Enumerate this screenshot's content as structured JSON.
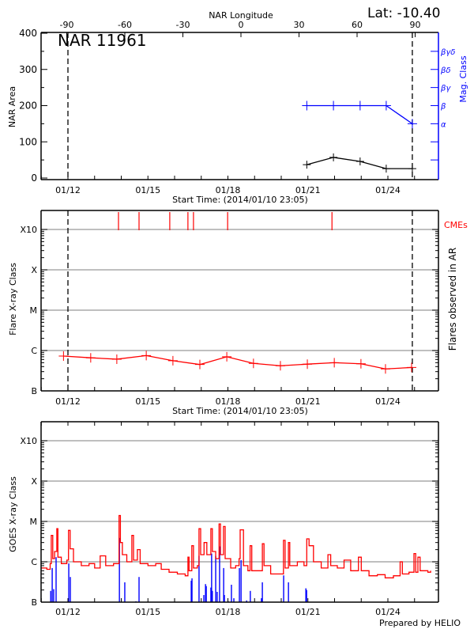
{
  "header": {
    "lat_label": "Lat: -10.40"
  },
  "footer": {
    "credit": "Prepared by HELIO"
  },
  "colors": {
    "area": "#000000",
    "mag_class": "#0000ff",
    "flare": "#ff0000",
    "cme": "#ff0000",
    "goes_flux": "#ff0000",
    "goes_events": "#0000ff",
    "grid": "#999999"
  },
  "chart_data": [
    {
      "type": "line",
      "title": "NAR 11961",
      "top_axis_label": "NAR Longitude",
      "top_ticks": [
        -90,
        -60,
        -30,
        0,
        30,
        60,
        90
      ],
      "xlabel": "Start Time: (2014/01/10 23:05)",
      "x_tick_labels": [
        "01/12",
        "01/15",
        "01/18",
        "01/21",
        "01/24"
      ],
      "ylabel": "NAR Area",
      "ylim": [
        0,
        400
      ],
      "y_ticks": [
        0,
        100,
        200,
        300,
        400
      ],
      "y2label": "Mag. Class",
      "y2_ticks": [
        "α",
        "β",
        "βγ",
        "βδ",
        "βγδ"
      ],
      "dashed_lines": [
        "01/12 00:00",
        "01/24 22:00"
      ],
      "area_points": [
        [
          "01/20 23:00",
          37
        ],
        [
          "01/21 23:00",
          57
        ],
        [
          "01/22 23:00",
          46
        ],
        [
          "01/23 22:30",
          26
        ],
        [
          "01/24 22:00",
          26
        ]
      ],
      "mag_class_points": [
        [
          "01/20 23:00",
          "β"
        ],
        [
          "01/21 23:00",
          "β"
        ],
        [
          "01/22 23:00",
          "β"
        ],
        [
          "01/23 22:30",
          "β"
        ],
        [
          "01/24 22:00",
          "α"
        ]
      ],
      "grid": false
    },
    {
      "type": "line",
      "xlabel": "Start Time: (2014/01/10 23:05)",
      "x_tick_labels": [
        "01/12",
        "01/15",
        "01/18",
        "01/21",
        "01/24"
      ],
      "ylabel": "Flare X-ray Class",
      "y2label": "Flares observed in AR",
      "class_ticks": [
        "B",
        "C",
        "M",
        "X",
        "X10"
      ],
      "yscale": "log",
      "ylim_flux": [
        1e-07,
        0.0029
      ],
      "grid": true,
      "cme_label": "CMEs",
      "cme_times": [
        "01/13 21:30",
        "01/14 16:00",
        "01/15 19:40",
        "01/16 12:00",
        "01/16 17:00",
        "01/17 23:45",
        "01/21 21:40"
      ],
      "dashed_lines": [
        "01/12 00:00",
        "01/24 22:00"
      ],
      "flare_points": [
        [
          "01/11 20:00",
          7.3e-07
        ],
        [
          "01/12 20:30",
          6.6e-07
        ],
        [
          "01/13 20:00",
          6.1e-07
        ],
        [
          "01/14 22:30",
          7.5e-07
        ],
        [
          "01/15 22:30",
          5.6e-07
        ],
        [
          "01/16 22:45",
          4.5e-07
        ],
        [
          "01/17 23:00",
          7e-07
        ],
        [
          "01/18 23:00",
          4.8e-07
        ],
        [
          "01/19 23:15",
          4.2e-07
        ],
        [
          "01/20 23:30",
          4.6e-07
        ],
        [
          "01/21 23:45",
          5e-07
        ],
        [
          "01/22 23:45",
          4.7e-07
        ],
        [
          "01/23 21:50",
          3.5e-07
        ],
        [
          "01/24 21:20",
          3.8e-07
        ]
      ]
    },
    {
      "type": "line",
      "x_tick_labels": [
        "01/12",
        "01/15",
        "01/18",
        "01/21",
        "01/24"
      ],
      "ylabel": "GOES X-ray Class",
      "class_ticks": [
        "B",
        "C",
        "M",
        "X",
        "X10"
      ],
      "yscale": "log",
      "ylim_flux": [
        1e-07,
        0.0029
      ],
      "grid": true,
      "flux_series": [
        [
          "01/11 00:00",
          7e-07
        ],
        [
          "01/11 05:00",
          6.5e-07
        ],
        [
          "01/11 08:00",
          9e-07
        ],
        [
          "01/11 09:00",
          4.5e-06
        ],
        [
          "01/11 10:20",
          1.2e-06
        ],
        [
          "01/11 12:00",
          1.8e-06
        ],
        [
          "01/11 14:00",
          6.6e-06
        ],
        [
          "01/11 15:00",
          1.3e-06
        ],
        [
          "01/11 18:00",
          9e-07
        ],
        [
          "01/11 23:00",
          1.1e-06
        ],
        [
          "01/12 00:30",
          6e-06
        ],
        [
          "01/12 02:00",
          2.1e-06
        ],
        [
          "01/12 05:00",
          1e-06
        ],
        [
          "01/12 12:00",
          8e-07
        ],
        [
          "01/12 19:00",
          9e-07
        ],
        [
          "01/13 00:00",
          7e-07
        ],
        [
          "01/13 05:00",
          1.4e-06
        ],
        [
          "01/13 10:00",
          8e-07
        ],
        [
          "01/13 17:00",
          9e-07
        ],
        [
          "01/13 21:00",
          9e-07
        ],
        [
          "01/13 22:00",
          1.4e-05
        ],
        [
          "01/13 23:15",
          3e-06
        ],
        [
          "01/14 01:00",
          1.5e-06
        ],
        [
          "01/14 05:00",
          1e-06
        ],
        [
          "01/14 09:30",
          4.5e-06
        ],
        [
          "01/14 11:00",
          1.1e-06
        ],
        [
          "01/14 14:30",
          2e-06
        ],
        [
          "01/14 17:00",
          9e-07
        ],
        [
          "01/15 00:00",
          8e-07
        ],
        [
          "01/15 07:00",
          9e-07
        ],
        [
          "01/15 12:00",
          6.5e-07
        ],
        [
          "01/15 19:00",
          5.5e-07
        ],
        [
          "01/16 02:30",
          5e-07
        ],
        [
          "01/16 09:30",
          4.5e-07
        ],
        [
          "01/16 12:00",
          1.3e-06
        ],
        [
          "01/16 13:00",
          6e-07
        ],
        [
          "01/16 15:30",
          2.5e-06
        ],
        [
          "01/16 17:00",
          7e-07
        ],
        [
          "01/16 20:30",
          8e-07
        ],
        [
          "01/16 22:00",
          6.6e-06
        ],
        [
          "01/16 23:30",
          1.5e-06
        ],
        [
          "01/17 02:30",
          3e-06
        ],
        [
          "01/17 05:00",
          1.5e-06
        ],
        [
          "01/17 08:40",
          6.6e-06
        ],
        [
          "01/17 10:00",
          1.8e-06
        ],
        [
          "01/17 13:00",
          1.2e-06
        ],
        [
          "01/17 16:00",
          8.7e-06
        ],
        [
          "01/17 17:20",
          1.5e-06
        ],
        [
          "01/17 20:00",
          7.5e-06
        ],
        [
          "01/17 21:30",
          1.2e-06
        ],
        [
          "01/18 02:30",
          7e-07
        ],
        [
          "01/18 07:00",
          8e-07
        ],
        [
          "01/18 10:00",
          1.2e-06
        ],
        [
          "01/18 11:00",
          6.2e-06
        ],
        [
          "01/18 12:30",
          6.2e-06
        ],
        [
          "01/18 14:00",
          8e-07
        ],
        [
          "01/18 18:00",
          6e-07
        ],
        [
          "01/18 20:00",
          2.5e-06
        ],
        [
          "01/18 21:30",
          6e-07
        ],
        [
          "01/19 05:00",
          6e-07
        ],
        [
          "01/19 07:00",
          2.8e-06
        ],
        [
          "01/19 08:30",
          8e-07
        ],
        [
          "01/19 14:30",
          5e-07
        ],
        [
          "01/19 21:30",
          5e-07
        ],
        [
          "01/20 02:00",
          3.4e-06
        ],
        [
          "01/20 03:30",
          7e-07
        ],
        [
          "01/20 06:30",
          3e-06
        ],
        [
          "01/20 07:40",
          8e-07
        ],
        [
          "01/20 14:30",
          1e-06
        ],
        [
          "01/20 20:30",
          8e-07
        ],
        [
          "01/20 23:00",
          3.7e-06
        ],
        [
          "01/21 01:00",
          2.5e-06
        ],
        [
          "01/21 05:00",
          1e-06
        ],
        [
          "01/21 12:00",
          7e-07
        ],
        [
          "01/21 18:00",
          1.5e-06
        ],
        [
          "01/21 20:30",
          8e-07
        ],
        [
          "01/22 02:30",
          7e-07
        ],
        [
          "01/22 08:30",
          1.1e-06
        ],
        [
          "01/22 14:30",
          6e-07
        ],
        [
          "01/22 21:30",
          1.3e-06
        ],
        [
          "01/23 00:00",
          6e-07
        ],
        [
          "01/23 07:00",
          4.5e-07
        ],
        [
          "01/23 14:30",
          4.8e-07
        ],
        [
          "01/23 21:30",
          4e-07
        ],
        [
          "01/24 05:00",
          4.5e-07
        ],
        [
          "01/24 11:00",
          1e-06
        ],
        [
          "01/24 13:00",
          5e-07
        ],
        [
          "01/24 19:00",
          5.5e-07
        ],
        [
          "01/24 23:30",
          1.6e-06
        ],
        [
          "01/25 01:00",
          5.5e-07
        ],
        [
          "01/25 03:00",
          1.3e-06
        ],
        [
          "01/25 05:00",
          6e-07
        ],
        [
          "01/25 12:00",
          5.5e-07
        ],
        [
          "01/25 14:30",
          6e-07
        ]
      ],
      "flare_events": [
        [
          "01/11 08:30",
          1.9e-07
        ],
        [
          "01/11 09:50",
          7e-07
        ],
        [
          "01/11 11:10",
          2.1e-07
        ],
        [
          "01/11 13:20",
          1.3e-06
        ],
        [
          "01/12 00:45",
          9.1e-07
        ],
        [
          "01/12 02:10",
          4.2e-07
        ],
        [
          "01/13 22:20",
          3.9e-06
        ],
        [
          "01/14 03:10",
          3.1e-07
        ],
        [
          "01/14 13:10",
          1.05e-07
        ],
        [
          "01/14 16:00",
          4.2e-07
        ],
        [
          "01/16 15:00",
          3.4e-07
        ],
        [
          "01/16 15:40",
          3.9e-07
        ],
        [
          "01/16 22:00",
          1.4e-06
        ],
        [
          "01/17 02:20",
          1.5e-07
        ],
        [
          "01/17 03:50",
          2.8e-07
        ],
        [
          "01/17 04:30",
          2.5e-07
        ],
        [
          "01/17 08:40",
          2.3e-07
        ],
        [
          "01/17 09:20",
          1.6e-06
        ],
        [
          "01/17 10:00",
          1.9e-07
        ],
        [
          "01/17 13:00",
          1.4e-06
        ],
        [
          "01/17 14:20",
          1.8e-07
        ],
        [
          "01/17 16:30",
          2.4e-06
        ],
        [
          "01/17 20:10",
          7e-07
        ],
        [
          "01/17 20:50",
          1.5e-07
        ],
        [
          "01/18 00:20",
          1.05e-07
        ],
        [
          "01/18 03:10",
          2.7e-07
        ],
        [
          "01/18 05:20",
          1.25e-07
        ],
        [
          "01/18 10:20",
          7e-07
        ],
        [
          "01/18 11:50",
          1.1e-06
        ],
        [
          "01/18 16:50",
          1.1e-07
        ],
        [
          "01/18 20:10",
          1.9e-07
        ],
        [
          "01/19 06:10",
          1.25e-07
        ],
        [
          "01/19 07:00",
          3.1e-07
        ],
        [
          "01/20 02:10",
          4.6e-07
        ],
        [
          "01/20 06:30",
          3.1e-07
        ],
        [
          "01/20 22:10",
          2.2e-07
        ],
        [
          "01/20 22:50",
          2e-07
        ]
      ]
    }
  ]
}
